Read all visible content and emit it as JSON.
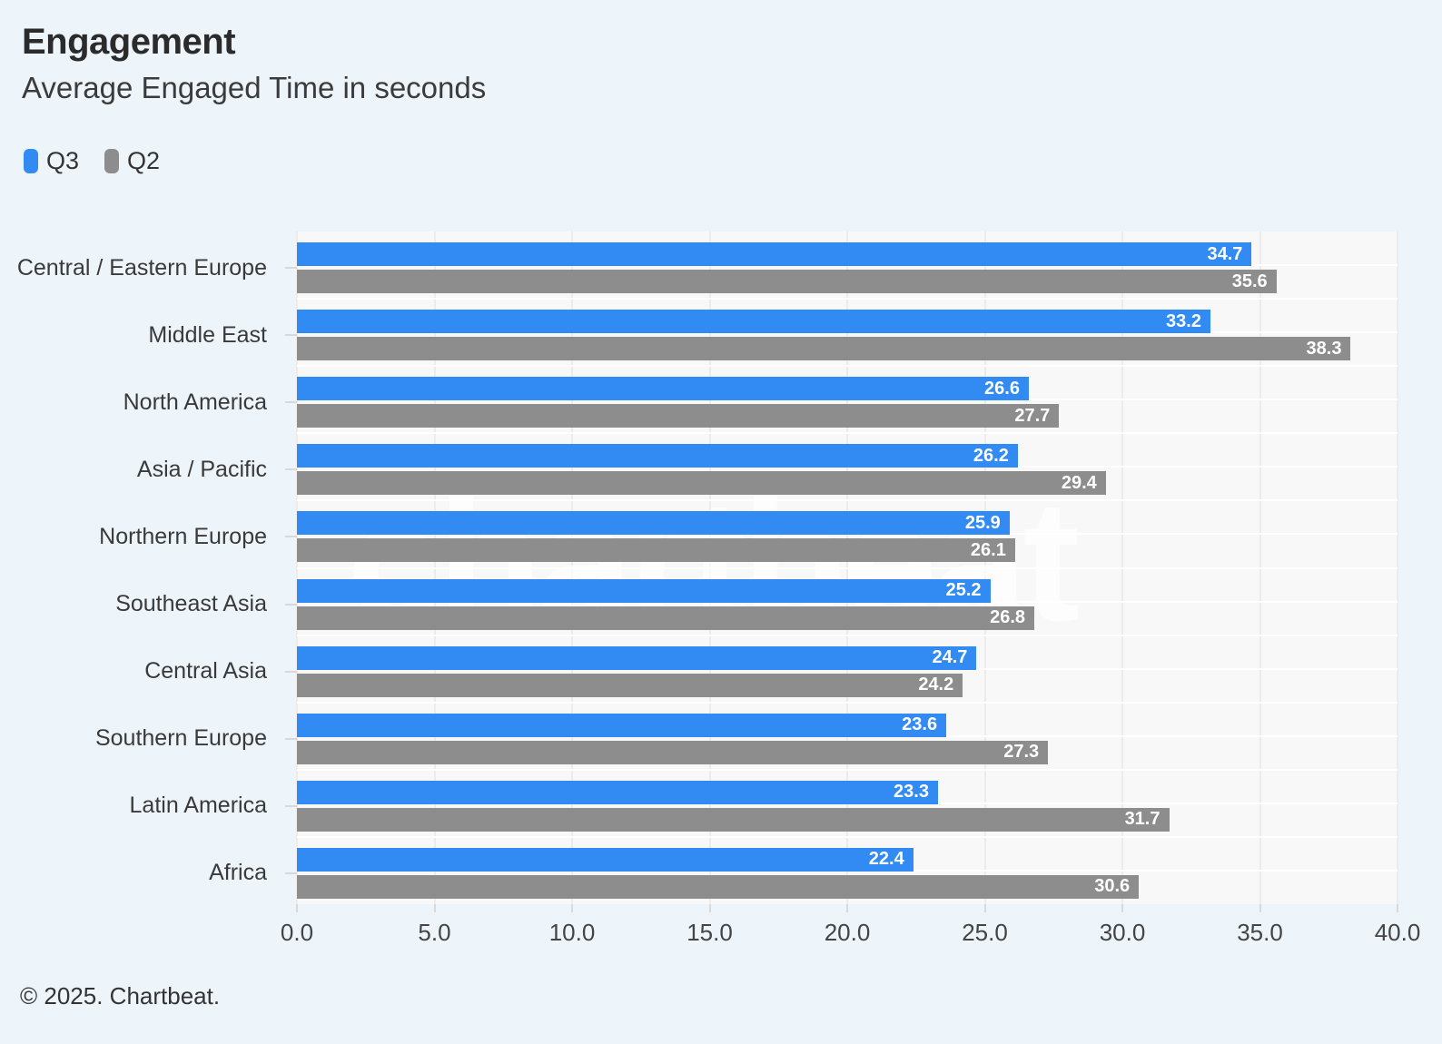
{
  "header": {
    "title": "Engagement",
    "subtitle": "Average Engaged Time in seconds"
  },
  "watermark": "chartbeat",
  "footer": {
    "copyright": "© 2025. Chartbeat."
  },
  "colors": {
    "page_background": "#edf5fb",
    "plot_background": "#f8f8f8",
    "q3_blue": "#318bf2",
    "q2_gray": "#8d8d8d",
    "value_label": "#ffffff"
  },
  "chart_data": {
    "type": "bar",
    "orientation": "horizontal",
    "title": "Engagement",
    "subtitle": "Average Engaged Time in seconds",
    "categories": [
      "Central / Eastern Europe",
      "Middle East",
      "North America",
      "Asia / Pacific",
      "Northern Europe",
      "Southeast Asia",
      "Central Asia",
      "Southern Europe",
      "Latin America",
      "Africa"
    ],
    "series": [
      {
        "name": "Q3",
        "color": "#318bf2",
        "values": [
          34.7,
          33.2,
          26.6,
          26.2,
          25.9,
          25.2,
          24.7,
          23.6,
          23.3,
          22.4
        ]
      },
      {
        "name": "Q2",
        "color": "#8d8d8d",
        "values": [
          35.6,
          38.3,
          27.7,
          29.4,
          26.1,
          26.8,
          24.2,
          27.3,
          31.7,
          30.6
        ]
      }
    ],
    "xlim": [
      0,
      40
    ],
    "xticks": [
      0,
      5,
      10,
      15,
      20,
      25,
      30,
      35,
      40
    ],
    "xtick_labels": [
      "0.0",
      "5.0",
      "10.0",
      "15.0",
      "20.0",
      "25.0",
      "30.0",
      "35.0",
      "40.0"
    ],
    "value_labels": true,
    "grid": true,
    "legend_position": "top-left"
  }
}
